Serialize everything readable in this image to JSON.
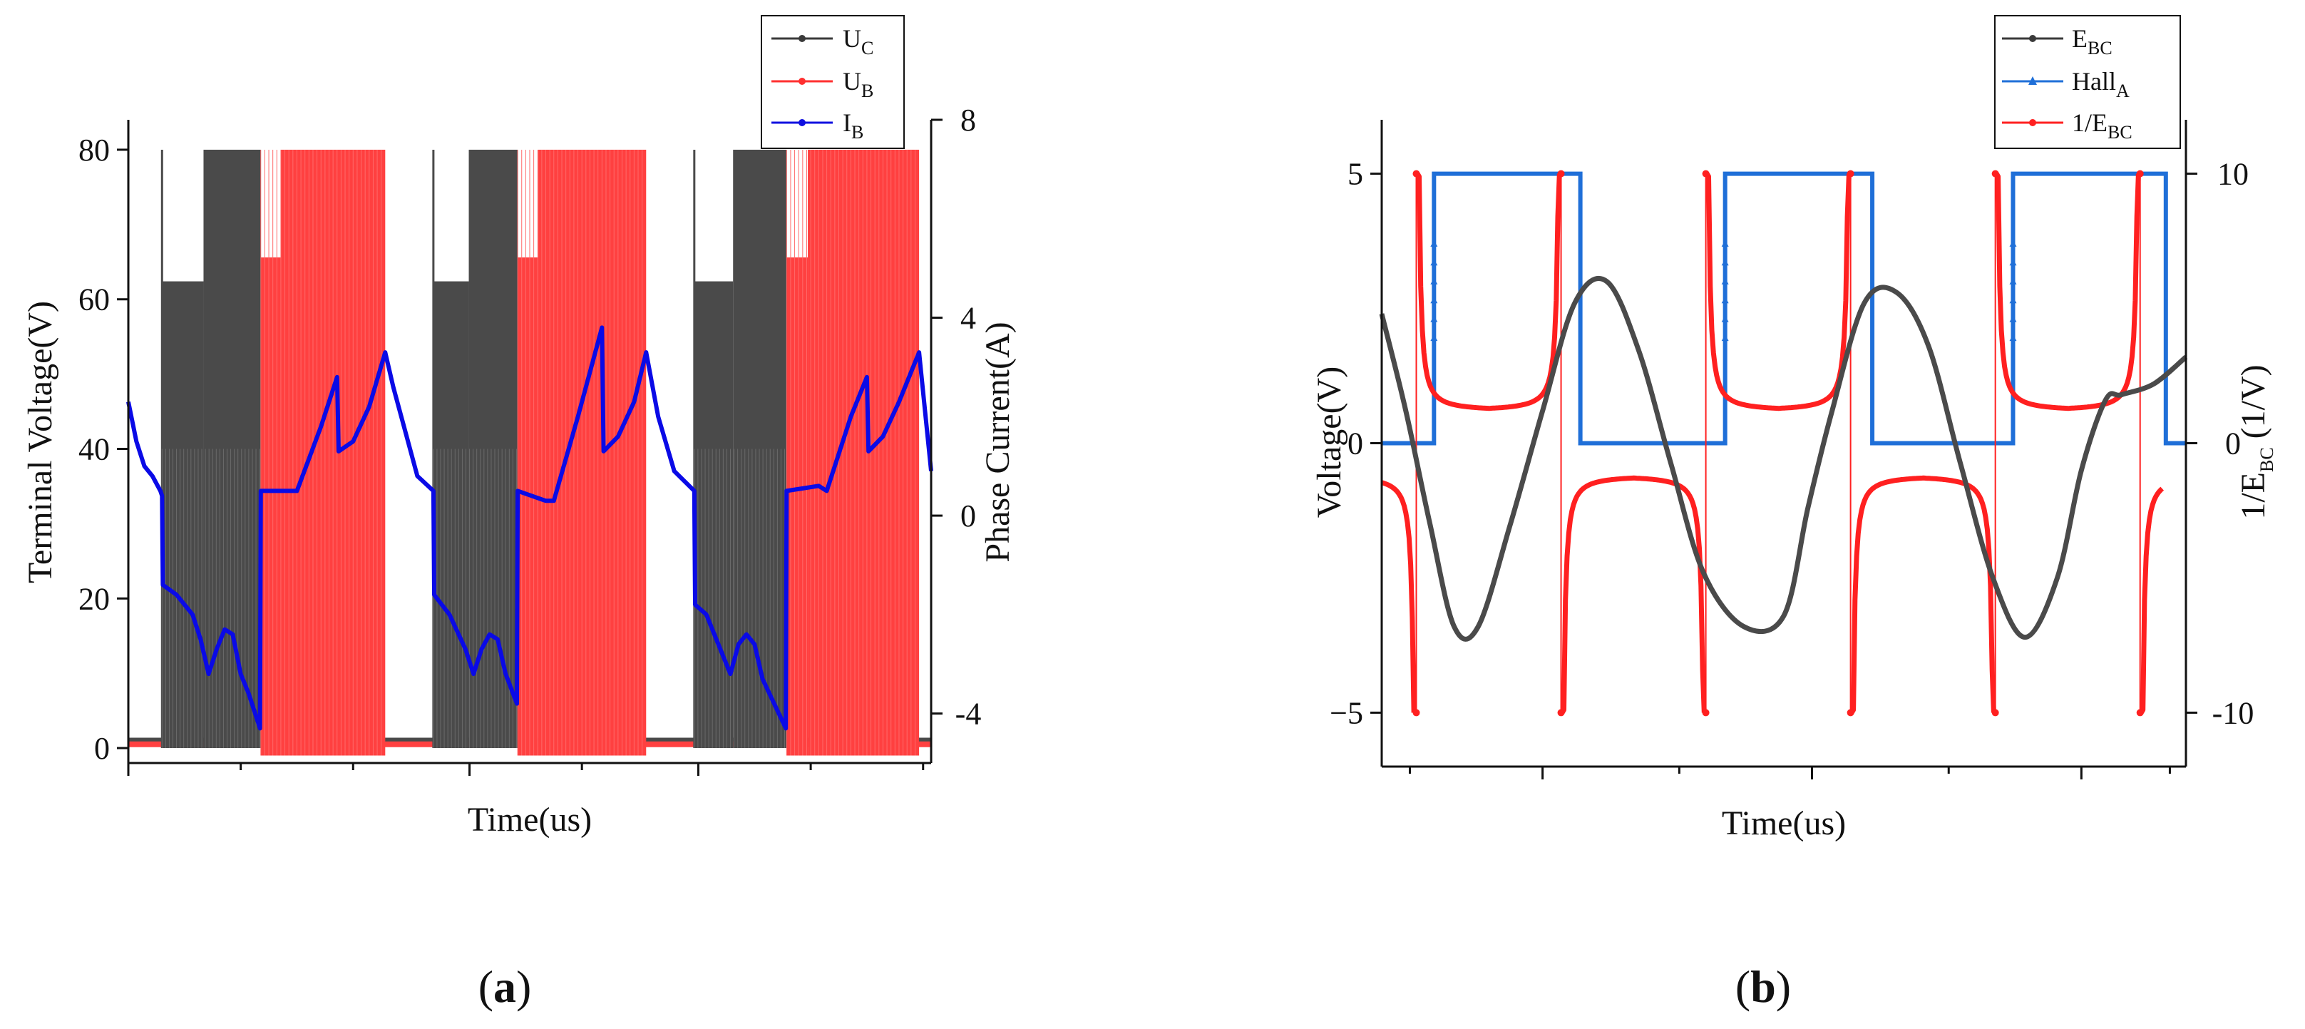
{
  "figure": {
    "panel_a_label": {
      "open": "(",
      "letter": "a",
      "close": ")"
    },
    "panel_b_label": {
      "open": "(",
      "letter": "b",
      "close": ")"
    }
  },
  "chart_data": [
    {
      "type": "line",
      "panel": "a",
      "xlabel": "Time(us)",
      "ylabel_left": "Terminal Voltage(V)",
      "ylabel_right": "Phase Current(A)",
      "ylim_left": [
        -2,
        84
      ],
      "ylim_right": [
        -5,
        8
      ],
      "xlim": [
        0,
        100
      ],
      "yticks_left": [
        0,
        20,
        40,
        60,
        80
      ],
      "yticks_left_labels": [
        "0",
        "20",
        "40",
        "60",
        "80"
      ],
      "yticks_right": [
        -4,
        0,
        4,
        8
      ],
      "yticks_right_labels": [
        "-4",
        "0",
        "4",
        "8"
      ],
      "x_major_ticks": [
        0,
        42.5,
        71
      ],
      "x_minor_ticks": [
        14,
        28,
        56.5,
        85,
        99
      ],
      "legend": [
        {
          "name": "U",
          "sub": "C",
          "color": "#3a3a3a"
        },
        {
          "name": "U",
          "sub": "B",
          "color": "#ff3030"
        },
        {
          "name": "I",
          "sub": "B",
          "color": "#1010e0"
        }
      ],
      "colors": {
        "uc": "#4a4a4a",
        "ub": "#ff4040",
        "ib": "#0a0ae6"
      },
      "series": [
        {
          "name": "U_C",
          "axis": "left",
          "blocks": [
            {
              "start": 4.2,
              "end": 16.5,
              "level": 80
            },
            {
              "start": 38.0,
              "end": 48.5,
              "level": 80
            },
            {
              "start": 70.5,
              "end": 82.0,
              "level": 80
            }
          ],
          "baseline": 1.0
        },
        {
          "name": "U_B",
          "axis": "left",
          "blocks": [
            {
              "start": 16.5,
              "end": 32.0,
              "level": 80
            },
            {
              "start": 48.5,
              "end": 64.5,
              "level": 80
            },
            {
              "start": 82.0,
              "end": 98.5,
              "level": 80
            }
          ],
          "baseline": 0.5
        },
        {
          "name": "I_B",
          "axis": "right",
          "x": [
            0,
            1,
            2,
            3,
            4,
            4.2,
            4.3,
            6,
            8,
            9,
            10,
            11,
            12,
            13,
            14,
            15,
            16.4,
            16.5,
            20,
            21,
            24,
            26,
            26.2,
            28,
            30,
            32,
            33,
            36,
            38,
            38.1,
            40,
            42,
            43,
            44,
            45,
            46,
            47,
            48.4,
            48.5,
            52,
            53,
            56,
            59,
            59.2,
            61,
            63,
            64.5,
            66,
            68,
            70.5,
            70.6,
            72,
            74,
            75,
            76,
            77,
            78,
            79,
            81.9,
            82,
            86,
            87,
            90,
            92,
            92.2,
            94,
            96,
            98.5,
            100
          ],
          "y": [
            2.3,
            1.5,
            1.0,
            0.8,
            0.5,
            0.4,
            -1.4,
            -1.6,
            -2.0,
            -2.5,
            -3.2,
            -2.7,
            -2.3,
            -2.4,
            -3.2,
            -3.6,
            -4.3,
            0.5,
            0.5,
            0.5,
            1.8,
            2.8,
            1.3,
            1.5,
            2.2,
            3.3,
            2.6,
            0.8,
            0.5,
            -1.6,
            -2.0,
            -2.7,
            -3.2,
            -2.7,
            -2.4,
            -2.5,
            -3.2,
            -3.8,
            0.5,
            0.3,
            0.3,
            2.0,
            3.8,
            1.3,
            1.6,
            2.3,
            3.3,
            2.0,
            0.9,
            0.5,
            -1.8,
            -2.0,
            -2.8,
            -3.2,
            -2.6,
            -2.4,
            -2.6,
            -3.3,
            -4.3,
            0.5,
            0.6,
            0.5,
            2.0,
            2.8,
            1.3,
            1.6,
            2.3,
            3.3,
            0.9
          ]
        }
      ]
    },
    {
      "type": "line",
      "panel": "b",
      "xlabel": "Time(us)",
      "ylabel_left": "Voltage(V)",
      "ylabel_right": {
        "prefix": "1/E",
        "sub": "BC",
        "suffix": " (1/V)"
      },
      "ylim_left": [
        -6,
        6
      ],
      "ylim_right": [
        -12,
        12
      ],
      "xlim": [
        0,
        100
      ],
      "yticks_left": [
        -5,
        0,
        5
      ],
      "yticks_left_labels": [
        "−5",
        "0",
        "5"
      ],
      "yticks_right": [
        -10,
        0,
        10
      ],
      "yticks_right_labels": [
        "-10",
        "0",
        "10"
      ],
      "x_major_ticks": [
        20,
        53.5,
        87
      ],
      "x_minor_ticks": [
        3.5,
        37,
        70.5,
        98
      ],
      "legend": [
        {
          "name": "E",
          "sub": "BC",
          "color": "#3a3a3a"
        },
        {
          "name": "Hall",
          "sub": "A",
          "color": "#1f6fd8"
        },
        {
          "name": "1/E",
          "sub": "BC",
          "color": "#ff2020"
        }
      ],
      "colors": {
        "ebc": "#4a4a4a",
        "hall": "#1f6fd8",
        "inv": "#ff2020"
      },
      "series": [
        {
          "name": "E_BC",
          "axis": "left",
          "x": [
            0,
            3,
            6,
            9,
            12,
            16,
            20,
            24,
            28,
            32,
            36,
            40,
            45,
            50,
            53,
            56,
            60,
            64,
            68,
            72,
            76,
            80,
            84,
            87,
            90,
            92,
            96,
            100
          ],
          "y": [
            2.4,
            0.6,
            -1.5,
            -3.4,
            -3.4,
            -1.5,
            0.6,
            2.6,
            3.0,
            1.7,
            -0.4,
            -2.4,
            -3.4,
            -3.2,
            -1.2,
            0.6,
            2.6,
            2.8,
            1.8,
            -0.4,
            -2.5,
            -3.6,
            -2.5,
            -0.5,
            0.8,
            0.9,
            1.1,
            1.6
          ]
        },
        {
          "name": "Hall_A",
          "axis": "left",
          "transitions": [
            {
              "t": 6.5,
              "from": 0,
              "to": 5
            },
            {
              "t": 24.7,
              "from": 5,
              "to": 0
            },
            {
              "t": 42.7,
              "from": 0,
              "to": 5
            },
            {
              "t": 61.0,
              "from": 5,
              "to": 0
            },
            {
              "t": 78.5,
              "from": 0,
              "to": 5
            },
            {
              "t": 97.5,
              "from": 5,
              "to": 0
            }
          ],
          "initial": 0
        },
        {
          "name": "1/E_BC",
          "axis": "right",
          "poles": [
            4.3,
            22.3,
            40.3,
            58.3,
            76.3,
            94.3
          ],
          "clip": 10,
          "plateau": 1.2
        }
      ]
    }
  ]
}
